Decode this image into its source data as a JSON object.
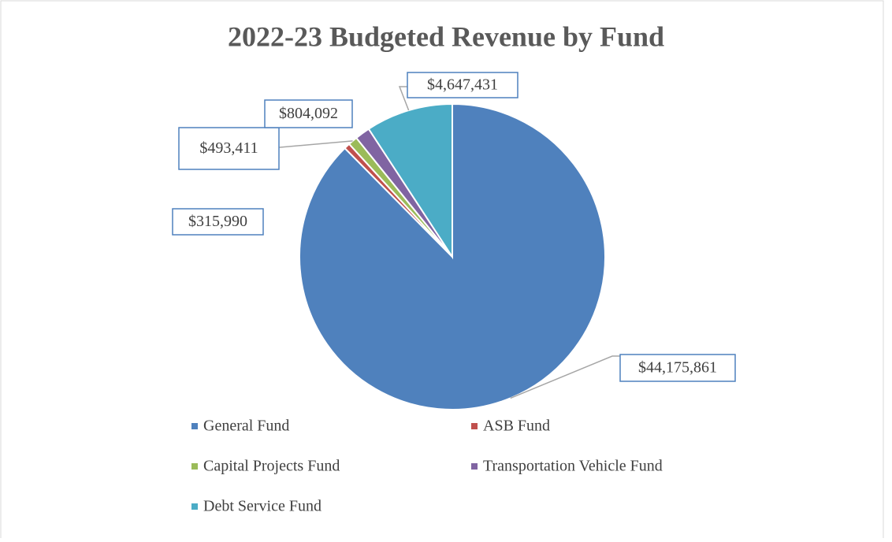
{
  "chart_data": {
    "type": "pie",
    "title": "2022-23 Budgeted Revenue by Fund",
    "categories": [
      "General Fund",
      "ASB Fund",
      "Capital Projects Fund",
      "Transportation Vehicle Fund",
      "Debt Service Fund"
    ],
    "values": [
      44175861,
      315990,
      493411,
      804092,
      4647431
    ],
    "value_labels": [
      "$44,175,861",
      "$315,990",
      "$493,411",
      "$804,092",
      "$4,647,431"
    ],
    "colors": [
      "#4f81bd",
      "#c0504d",
      "#9bbb59",
      "#8064a2",
      "#4bacc6"
    ],
    "legend": "bottom"
  }
}
